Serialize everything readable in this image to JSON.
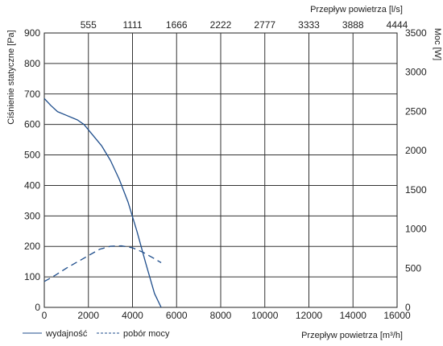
{
  "chart_data": {
    "type": "line",
    "title": "",
    "xlabel": "Przepływ powietrza [m³/h]",
    "x2label": "Przepływ powietrza [l/s]",
    "ylabel": "Ciśnienie statyczne [Pa]",
    "y2label": "Moc [W]",
    "xlim": [
      0,
      16000
    ],
    "ylim": [
      0,
      900
    ],
    "y2lim": [
      0,
      3500
    ],
    "x_ticks": [
      "0",
      "2000",
      "4000",
      "6000",
      "8000",
      "10000",
      "12000",
      "14000",
      "16000"
    ],
    "x2_ticks": [
      "555",
      "1111",
      "1666",
      "2222",
      "2777",
      "3333",
      "3888",
      "4444"
    ],
    "y_ticks": [
      "0",
      "100",
      "200",
      "300",
      "400",
      "500",
      "600",
      "700",
      "800",
      "900"
    ],
    "y2_ticks": [
      "0",
      "500",
      "1000",
      "1500",
      "2000",
      "2500",
      "3000",
      "3500"
    ],
    "grid": true,
    "legend_position": "bottom-left",
    "series": [
      {
        "name": "wydajność",
        "axis": "left",
        "style": "solid",
        "color": "#1f4e8c",
        "x": [
          0,
          300,
          600,
          1000,
          1500,
          1800,
          2200,
          2600,
          3000,
          3400,
          3800,
          4200,
          4600,
          5000,
          5300
        ],
        "y": [
          685,
          662,
          642,
          630,
          615,
          600,
          565,
          530,
          482,
          420,
          345,
          250,
          145,
          45,
          0
        ]
      },
      {
        "name": "pobór mocy",
        "axis": "right",
        "style": "dashed",
        "color": "#1f4e8c",
        "x": [
          0,
          500,
          1000,
          1500,
          2000,
          2500,
          3000,
          3500,
          4000,
          4500,
          5000,
          5300
        ],
        "y": [
          330,
          410,
          500,
          580,
          660,
          740,
          780,
          785,
          760,
          700,
          620,
          570
        ]
      }
    ]
  }
}
